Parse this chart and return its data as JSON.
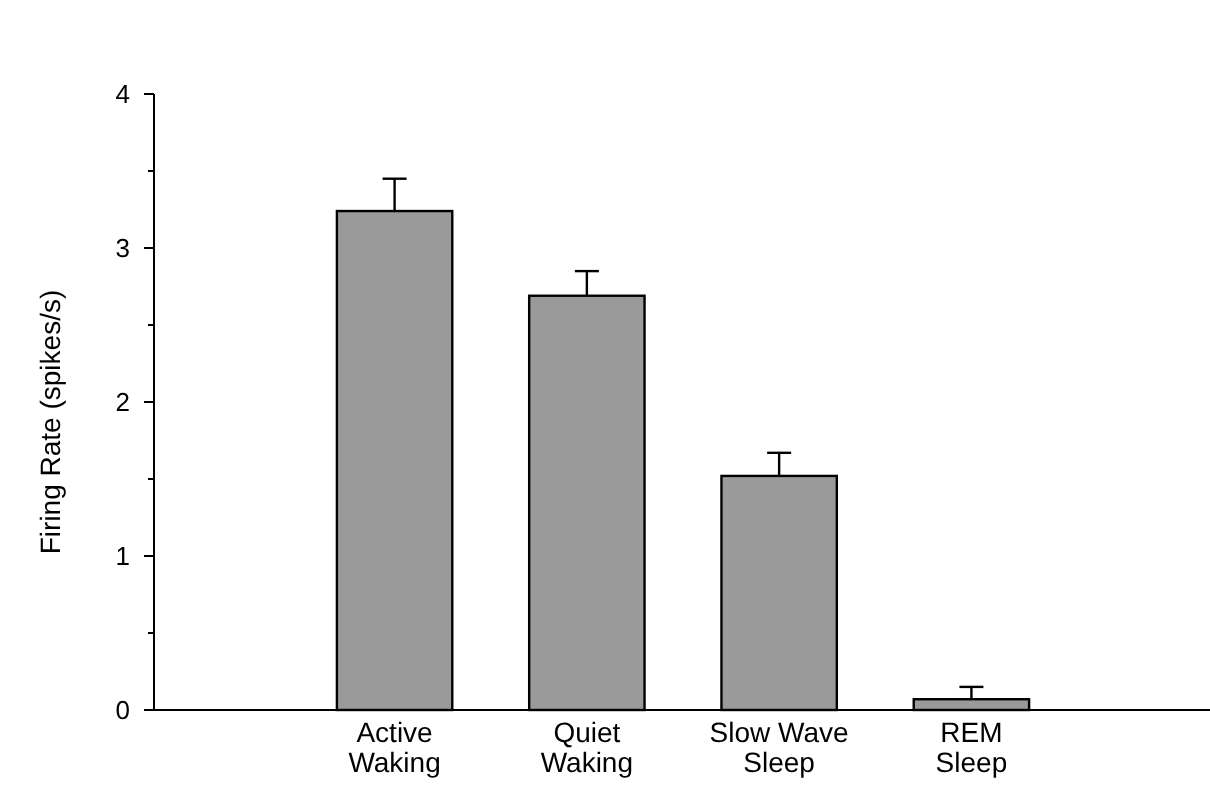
{
  "chart_data": {
    "type": "bar",
    "ylabel": "Firing Rate (spikes/s)",
    "categories": [
      "Active\nWaking",
      "Quiet\nWaking",
      "Slow Wave\nSleep",
      "REM\nSleep"
    ],
    "values": [
      3.24,
      2.69,
      1.52,
      0.07
    ],
    "errors": [
      [
        3.24,
        3.45
      ],
      [
        2.69,
        2.85
      ],
      [
        1.52,
        1.67
      ],
      [
        0.07,
        0.15
      ]
    ],
    "color": "#9a9a9a",
    "ylim": [
      0,
      4
    ],
    "yticks": [
      0,
      {
        "value": 0.5,
        "label": null
      },
      1,
      {
        "value": 1.5,
        "label": null
      },
      2,
      {
        "value": 2.5,
        "label": null
      },
      3,
      {
        "value": 3.5,
        "label": null
      },
      4
    ]
  }
}
